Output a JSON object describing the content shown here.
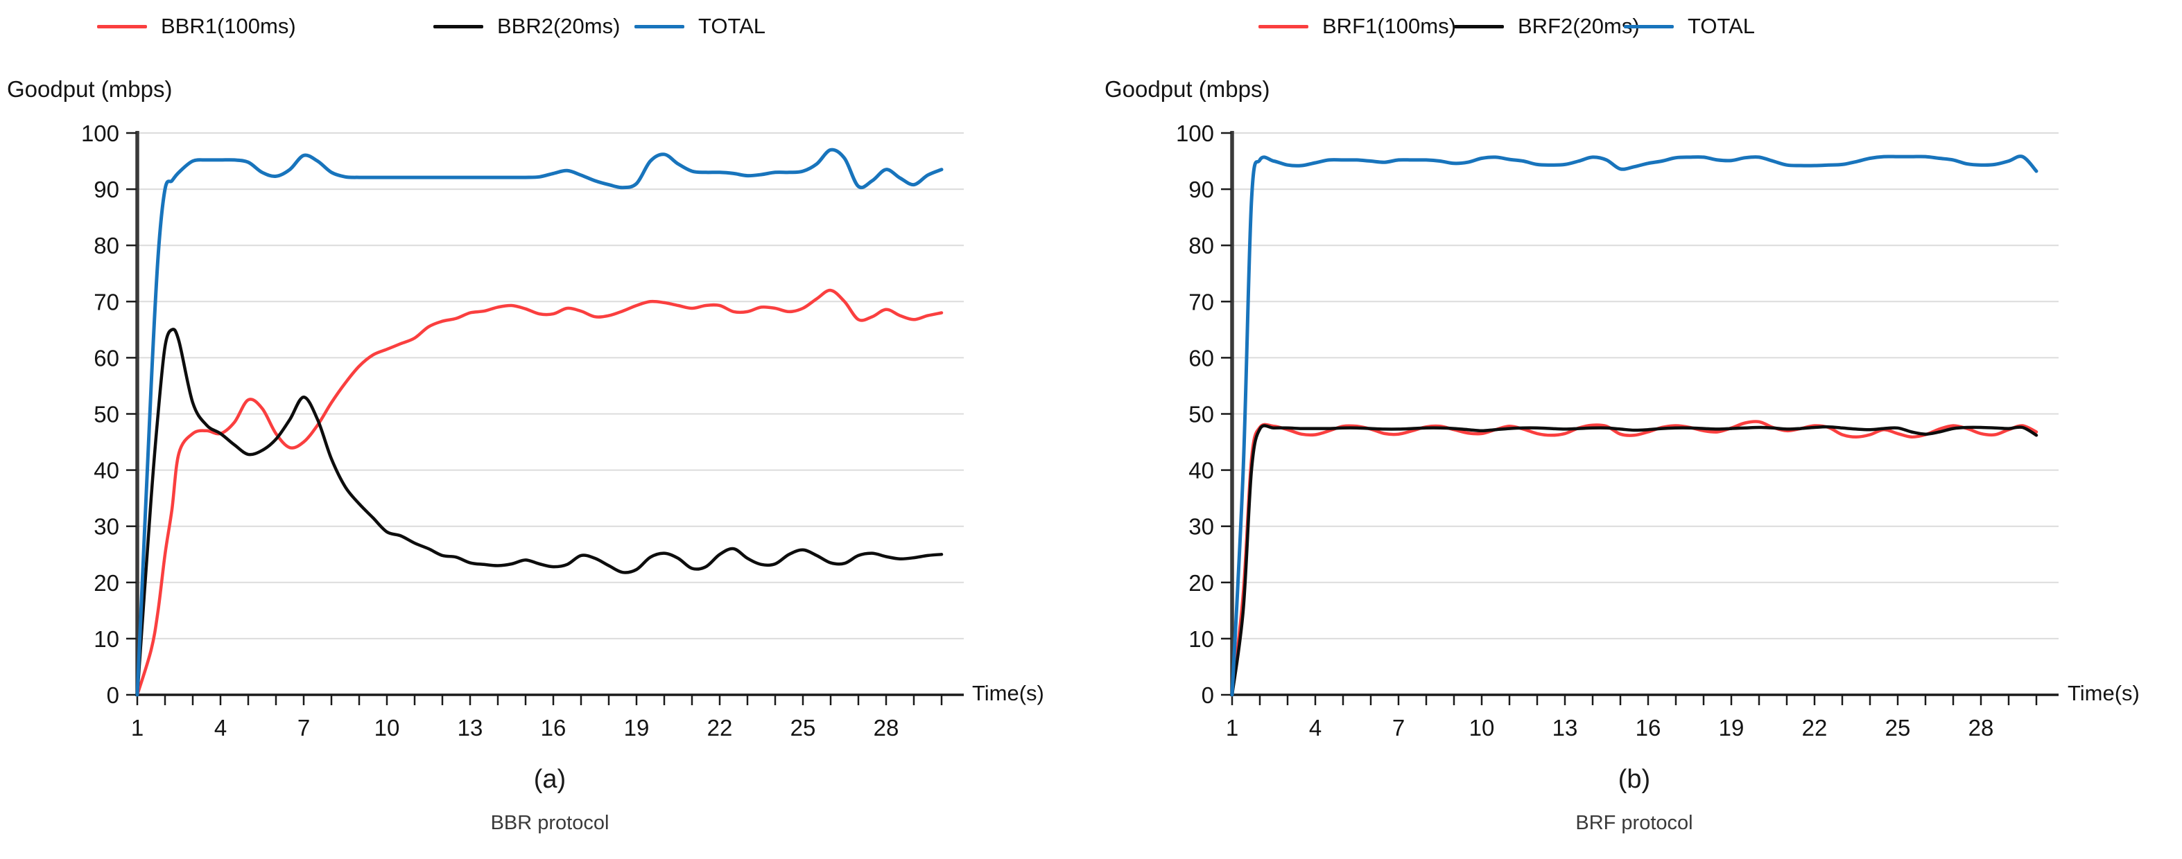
{
  "figure": {
    "background": "#ffffff",
    "text_color": "#141414",
    "grid_color": "#dcdcdc",
    "axis_color": "#1a1a1a"
  },
  "chart_data": [
    {
      "type": "line",
      "caption": "(a)",
      "subtitle": "BBR protocol",
      "ylabel": "Goodput (mbps)",
      "xlabel": "Time(s)",
      "xlim": [
        1,
        30
      ],
      "ylim": [
        0,
        100
      ],
      "yticks": [
        0,
        10,
        20,
        30,
        40,
        50,
        60,
        70,
        80,
        90,
        100
      ],
      "xticks_labeled": [
        1,
        4,
        7,
        10,
        13,
        16,
        19,
        22,
        25,
        28
      ],
      "xtick_minor_step": 1,
      "grid": "horizontal",
      "legend_position": "top",
      "x": [
        1,
        1.5,
        1.75,
        2,
        2.25,
        2.5,
        3,
        3.5,
        4,
        4.5,
        5,
        5.5,
        6,
        6.5,
        7,
        7.5,
        8,
        8.5,
        9,
        9.5,
        10,
        10.5,
        11,
        11.5,
        12,
        12.5,
        13,
        13.5,
        14,
        14.5,
        15,
        15.5,
        16,
        16.5,
        17,
        17.5,
        18,
        18.5,
        19,
        19.5,
        20,
        20.5,
        21,
        21.5,
        22,
        22.5,
        23,
        23.5,
        24,
        24.5,
        25,
        25.5,
        26,
        26.5,
        27,
        27.5,
        28,
        28.5,
        29,
        29.5,
        30
      ],
      "series": [
        {
          "name": "BBR1(100ms)",
          "color": "#fa3f3f",
          "values": [
            0,
            8,
            15,
            25,
            33,
            43,
            46.5,
            47,
            46.5,
            48.5,
            52.5,
            51,
            46.5,
            44,
            45,
            48,
            52,
            55.5,
            58.5,
            60.5,
            61.5,
            62.5,
            63.5,
            65.5,
            66.5,
            67,
            68,
            68.3,
            69,
            69.3,
            68.7,
            67.8,
            67.8,
            68.8,
            68.3,
            67.3,
            67.5,
            68.3,
            69.3,
            70,
            69.8,
            69.3,
            68.8,
            69.3,
            69.3,
            68.2,
            68.2,
            69,
            68.8,
            68.2,
            68.8,
            70.5,
            72,
            70,
            66.8,
            67.3,
            68.6,
            67.5,
            66.8,
            67.5,
            68
          ]
        },
        {
          "name": "BBR2(20ms)",
          "color": "#0d0d0d",
          "values": [
            0,
            35,
            50,
            62,
            65,
            63,
            52,
            48,
            46.5,
            44.5,
            42.8,
            43.5,
            45.5,
            49,
            53,
            49,
            42,
            37,
            34,
            31.5,
            29,
            28.3,
            27,
            26,
            24.8,
            24.5,
            23.5,
            23.2,
            23,
            23.3,
            24,
            23.3,
            22.8,
            23.2,
            24.8,
            24.3,
            23,
            21.8,
            22.3,
            24.5,
            25.2,
            24.3,
            22.5,
            22.8,
            25,
            26,
            24.3,
            23.2,
            23.3,
            25,
            25.8,
            24.8,
            23.5,
            23.4,
            24.8,
            25.2,
            24.6,
            24.2,
            24.4,
            24.8,
            25
          ]
        },
        {
          "name": "TOTAL",
          "color": "#1874bc",
          "values": [
            0,
            55,
            78,
            90,
            91.5,
            93,
            95,
            95.2,
            95.2,
            95.2,
            94.8,
            93,
            92.3,
            93.5,
            96,
            95,
            93,
            92.2,
            92.1,
            92.1,
            92.1,
            92.1,
            92.1,
            92.1,
            92.1,
            92.1,
            92.1,
            92.1,
            92.1,
            92.1,
            92.1,
            92.2,
            92.8,
            93.3,
            92.5,
            91.5,
            90.8,
            90.3,
            91,
            95,
            96.2,
            94.5,
            93.2,
            93,
            93,
            92.8,
            92.4,
            92.6,
            93,
            93,
            93.2,
            94.5,
            97,
            95.5,
            90.5,
            91.5,
            93.5,
            92,
            90.8,
            92.5,
            93.5
          ]
        }
      ]
    },
    {
      "type": "line",
      "caption": "(b)",
      "subtitle": "BRF protocol",
      "ylabel": "Goodput (mbps)",
      "xlabel": "Time(s)",
      "xlim": [
        1,
        30
      ],
      "ylim": [
        0,
        100
      ],
      "yticks": [
        0,
        10,
        20,
        30,
        40,
        50,
        60,
        70,
        80,
        90,
        100
      ],
      "xticks_labeled": [
        1,
        4,
        7,
        10,
        13,
        16,
        19,
        22,
        25,
        28
      ],
      "xtick_minor_step": 1,
      "grid": "horizontal",
      "legend_position": "top",
      "x": [
        1,
        1.4,
        1.7,
        2,
        2.5,
        3,
        3.5,
        4,
        4.5,
        5,
        5.5,
        6,
        6.5,
        7,
        7.5,
        8,
        8.5,
        9,
        9.5,
        10,
        10.5,
        11,
        11.5,
        12,
        12.5,
        13,
        13.5,
        14,
        14.5,
        15,
        15.5,
        16,
        16.5,
        17,
        17.5,
        18,
        18.5,
        19,
        19.5,
        20,
        20.5,
        21,
        21.5,
        22,
        22.5,
        23,
        23.5,
        24,
        24.5,
        25,
        25.5,
        26,
        26.5,
        27,
        27.5,
        28,
        28.5,
        29,
        29.5,
        30
      ],
      "series": [
        {
          "name": "BRF1(100ms)",
          "color": "#fa3f3f",
          "values": [
            0,
            18,
            42,
            47.6,
            47.8,
            47.2,
            46.4,
            46.3,
            47,
            47.8,
            47.8,
            47.3,
            46.5,
            46.4,
            47,
            47.7,
            47.8,
            47.2,
            46.6,
            46.5,
            47.2,
            47.8,
            47.3,
            46.5,
            46.2,
            46.5,
            47.5,
            48,
            47.8,
            46.4,
            46.2,
            46.8,
            47.6,
            47.9,
            47.6,
            47,
            46.8,
            47.5,
            48.4,
            48.6,
            47.6,
            47,
            47.4,
            47.9,
            47.6,
            46.3,
            45.9,
            46.3,
            47.2,
            46.5,
            45.9,
            46.3,
            47.3,
            47.9,
            47.4,
            46.5,
            46.3,
            47.2,
            47.9,
            46.8
          ]
        },
        {
          "name": "BRF2(20ms)",
          "color": "#0d0d0d",
          "values": [
            0,
            15,
            40,
            47.3,
            47.5,
            47.5,
            47.4,
            47.4,
            47.4,
            47.5,
            47.5,
            47.4,
            47.3,
            47.3,
            47.4,
            47.5,
            47.5,
            47.4,
            47.2,
            47,
            47.2,
            47.4,
            47.5,
            47.5,
            47.4,
            47.3,
            47.4,
            47.5,
            47.5,
            47.3,
            47.1,
            47.2,
            47.4,
            47.5,
            47.5,
            47.4,
            47.3,
            47.4,
            47.5,
            47.6,
            47.5,
            47.3,
            47.4,
            47.6,
            47.7,
            47.5,
            47.3,
            47.2,
            47.4,
            47.5,
            46.8,
            46.4,
            46.8,
            47.4,
            47.6,
            47.6,
            47.5,
            47.4,
            47.6,
            46.2
          ]
        },
        {
          "name": "TOTAL",
          "color": "#1874bc",
          "values": [
            0,
            40,
            88,
            95.2,
            95,
            94.3,
            94.2,
            94.7,
            95.2,
            95.2,
            95.2,
            95,
            94.8,
            95.2,
            95.2,
            95.2,
            95,
            94.6,
            94.8,
            95.5,
            95.7,
            95.3,
            95,
            94.4,
            94.3,
            94.4,
            95,
            95.7,
            95.2,
            93.6,
            94,
            94.6,
            95,
            95.6,
            95.7,
            95.7,
            95.2,
            95.1,
            95.6,
            95.7,
            95,
            94.3,
            94.2,
            94.2,
            94.3,
            94.4,
            94.9,
            95.5,
            95.8,
            95.8,
            95.8,
            95.8,
            95.5,
            95.2,
            94.5,
            94.3,
            94.4,
            95,
            95.8,
            93.2
          ]
        }
      ]
    }
  ]
}
